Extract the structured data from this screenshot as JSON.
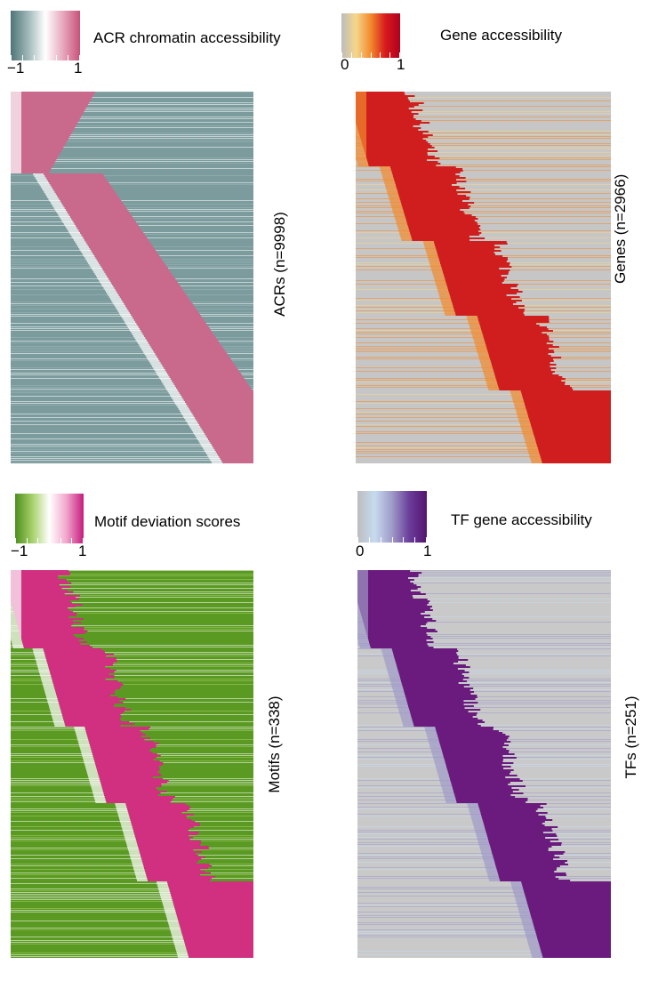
{
  "chart_data": [
    {
      "type": "heatmap",
      "legend_title": "ACR chromatin accessibility",
      "ylabel": "ACRs (n=9998)",
      "colorscale": {
        "min_label": "−1",
        "max_label": "1",
        "colors": [
          "#4f7477",
          "#9fb7b8",
          "#ffffff",
          "#e7a9bd",
          "#c8527a"
        ]
      },
      "pattern": "diagonal",
      "background_color": "#7b9b9d",
      "block_color": "#c96a8c"
    },
    {
      "type": "heatmap",
      "legend_title": "Gene accessibility",
      "ylabel": "Genes (n=2966)",
      "colorscale": {
        "min_label": "0",
        "max_label": "1",
        "colors": [
          "#bdbdbd",
          "#f6d68a",
          "#f28a2e",
          "#d7191c",
          "#b00020"
        ]
      },
      "pattern": "staircase",
      "background_color": "#c6c6c6",
      "block_color": "#d01e1e"
    },
    {
      "type": "heatmap",
      "legend_title": "Motif deviation scores",
      "ylabel": "Motifs (n=338)",
      "colorscale": {
        "min_label": "−1",
        "max_label": "1",
        "colors": [
          "#4d8f1c",
          "#a6d06a",
          "#ffffff",
          "#f2a6cb",
          "#c51b7d"
        ]
      },
      "pattern": "staircase",
      "background_color": "#5a9a22",
      "block_color": "#d0307f"
    },
    {
      "type": "heatmap",
      "legend_title": "TF gene accessibility",
      "ylabel": "TFs (n=251)",
      "colorscale": {
        "min_label": "0",
        "max_label": "1",
        "colors": [
          "#bdbdbd",
          "#c6dbef",
          "#9e9ac8",
          "#6a3d9a",
          "#54146e"
        ]
      },
      "pattern": "staircase",
      "background_color": "#c9c9c9",
      "block_color": "#6b1a7e"
    }
  ]
}
